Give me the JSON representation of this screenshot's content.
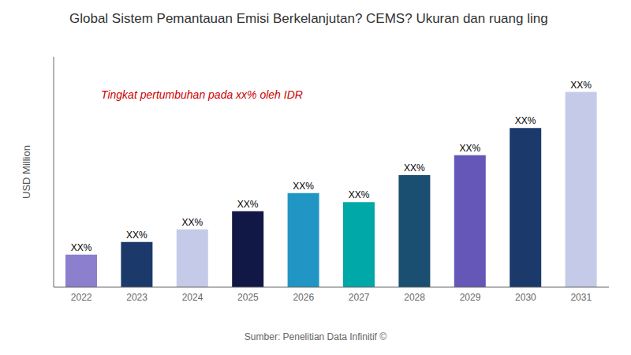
{
  "chart_data": {
    "type": "bar",
    "title": "Global Sistem Pemantauan Emisi Berkelanjutan? CEMS? Ukuran dan ruang ling",
    "ylabel": "USD Million",
    "source": "Sumber: Penelitian Data Infinitif ©",
    "annotation": {
      "text": "Tingkat pertumbuhan pada xx% oleh IDR",
      "color": "#CC0000"
    },
    "categories": [
      "2022",
      "2023",
      "2024",
      "2025",
      "2026",
      "2027",
      "2028",
      "2029",
      "2030",
      "2031"
    ],
    "values": [
      1.8,
      2.5,
      3.2,
      4.2,
      5.2,
      4.7,
      6.2,
      7.3,
      8.8,
      10.8
    ],
    "value_labels": [
      "XX%",
      "XX%",
      "XX%",
      "XX%",
      "XX%",
      "XX%",
      "XX%",
      "XX%",
      "XX%",
      "XX%"
    ],
    "data_labels": true,
    "colors": [
      "#8B7FCE",
      "#1B3A6B",
      "#C5CAE9",
      "#111845",
      "#2196C4",
      "#00A8A8",
      "#1B4F72",
      "#6457B8",
      "#1B3A6B",
      "#C5CAE9"
    ],
    "ylim": [
      0,
      12.744
    ],
    "yticks": [],
    "grid": false,
    "tick_labels": "x"
  }
}
